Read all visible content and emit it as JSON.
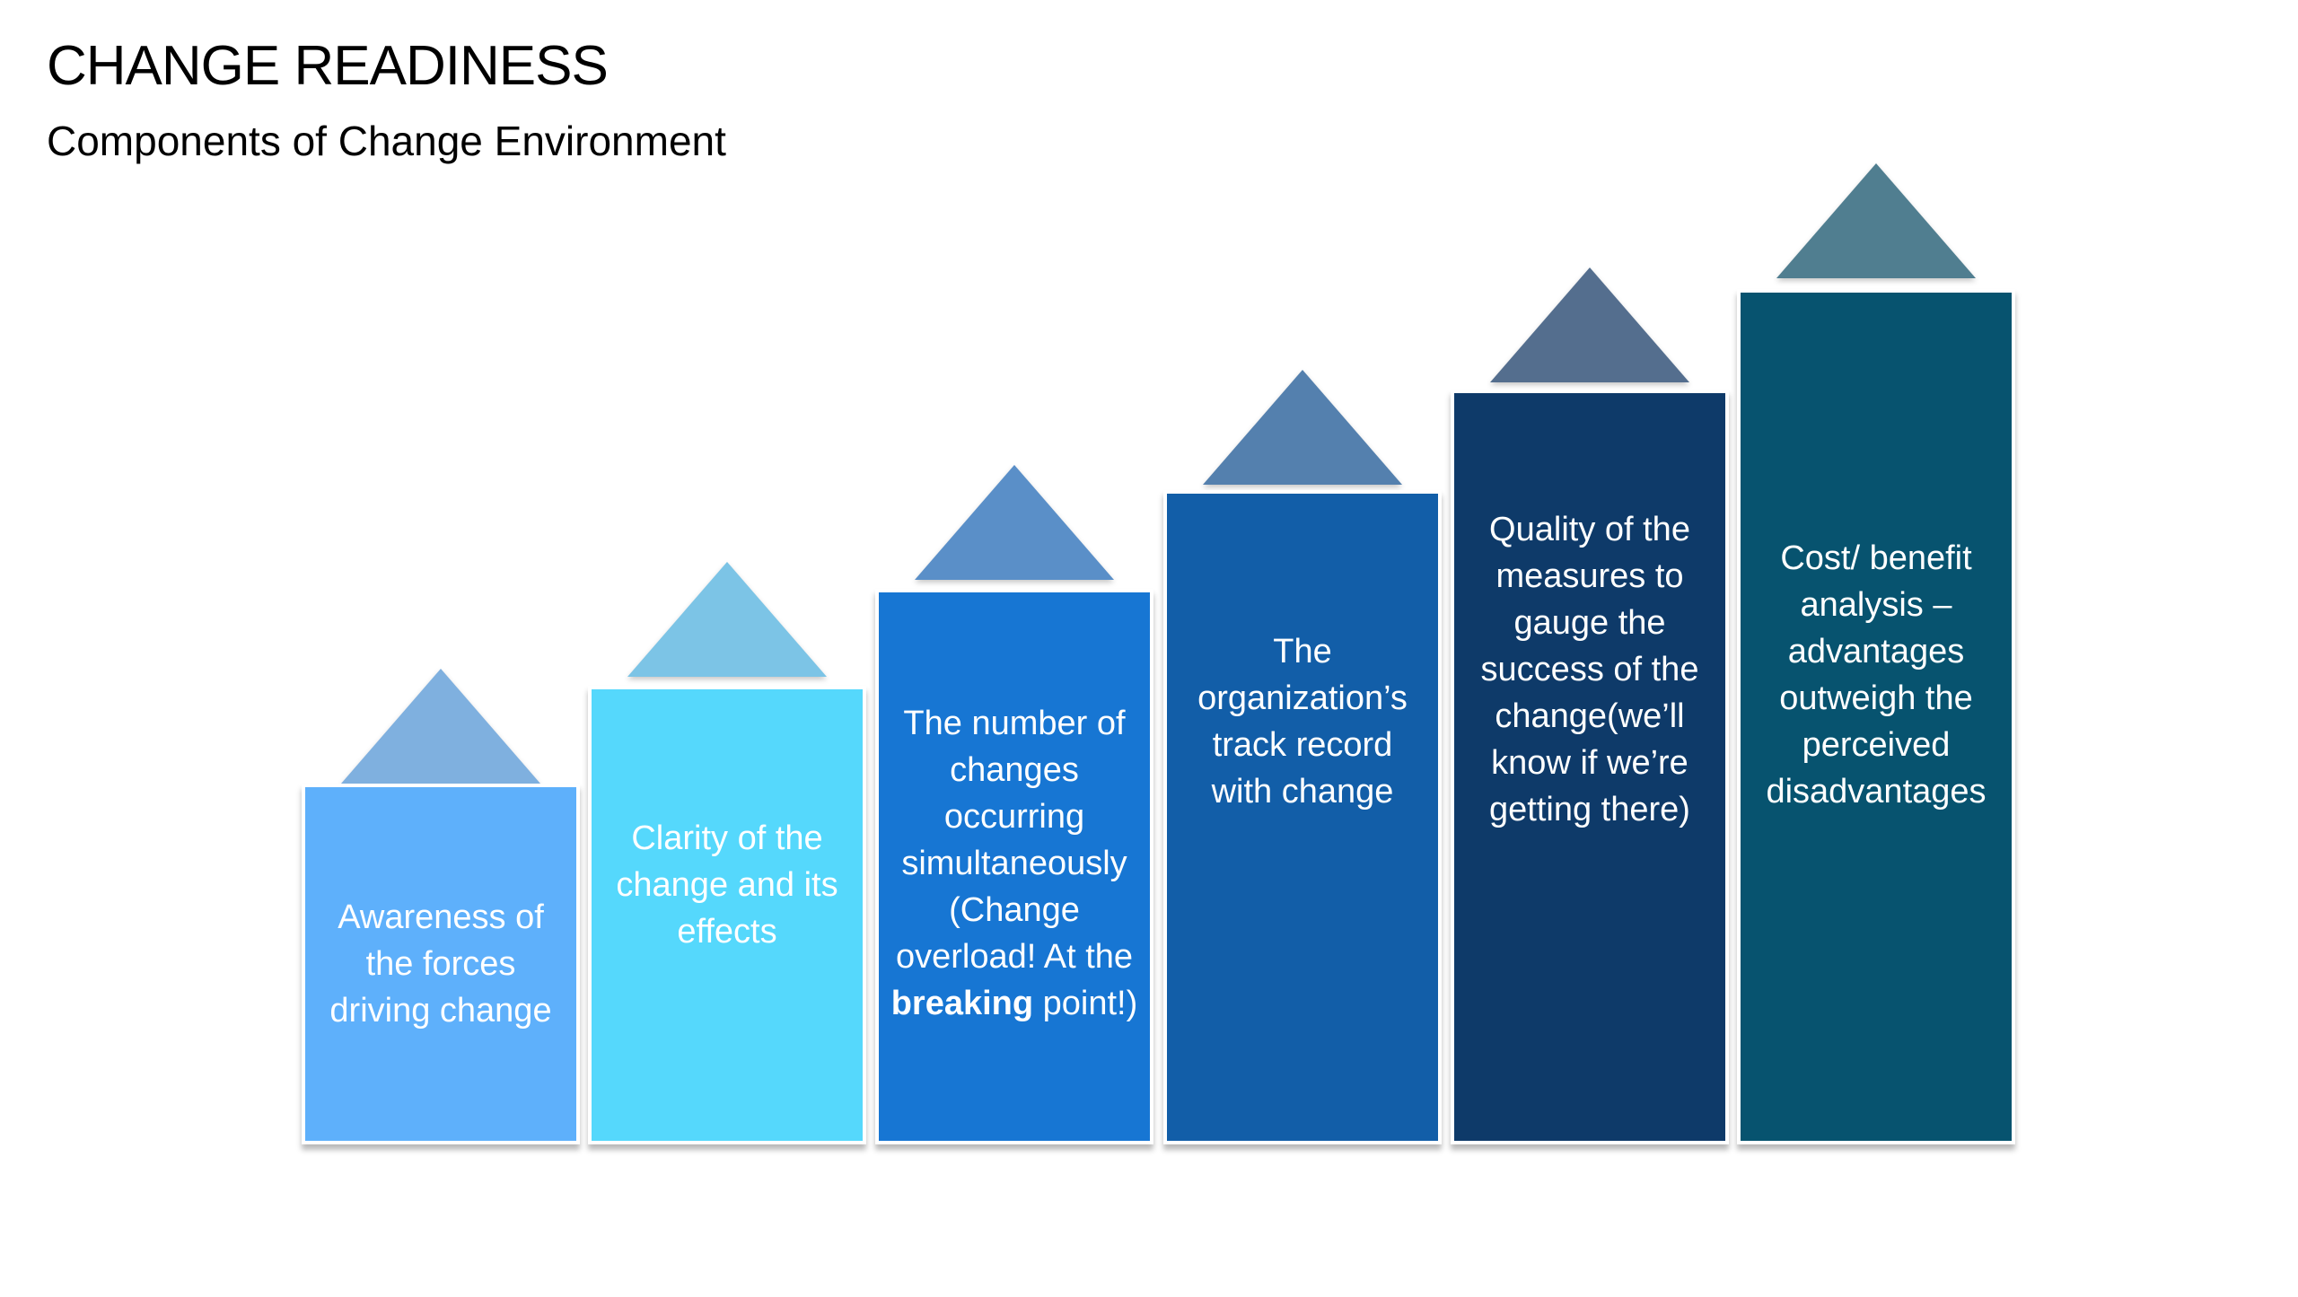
{
  "slide": {
    "title": "CHANGE READINESS",
    "subtitle": "Components of Change Environment"
  },
  "steps": [
    {
      "text": "Awareness of the forces driving change",
      "box_color": "#5EB0FB",
      "triangle_color": "#7FB0DF"
    },
    {
      "text": "Clarity of the change and its effects",
      "box_color": "#55D8FC",
      "triangle_color": "#7CC4E6"
    },
    {
      "text_before": "The number of changes occurring simultaneously (Change overload! At the",
      "text_bold": "breaking",
      "text_after": "point!)",
      "box_color": "#1776D3",
      "triangle_color": "#5A8FC8"
    },
    {
      "text": "The organization’s track record with change",
      "box_color": "#125EA8",
      "triangle_color": "#5480AE"
    },
    {
      "text": "Quality of the measures to gauge the success of the change(we’ll know if we’re getting there)",
      "box_color": "#0E3A69",
      "triangle_color": "#546E8E"
    },
    {
      "text": "Cost/ benefit analysis – advantages outweigh the perceived disadvantages",
      "box_color": "#07536F",
      "triangle_color": "#507E90"
    }
  ]
}
